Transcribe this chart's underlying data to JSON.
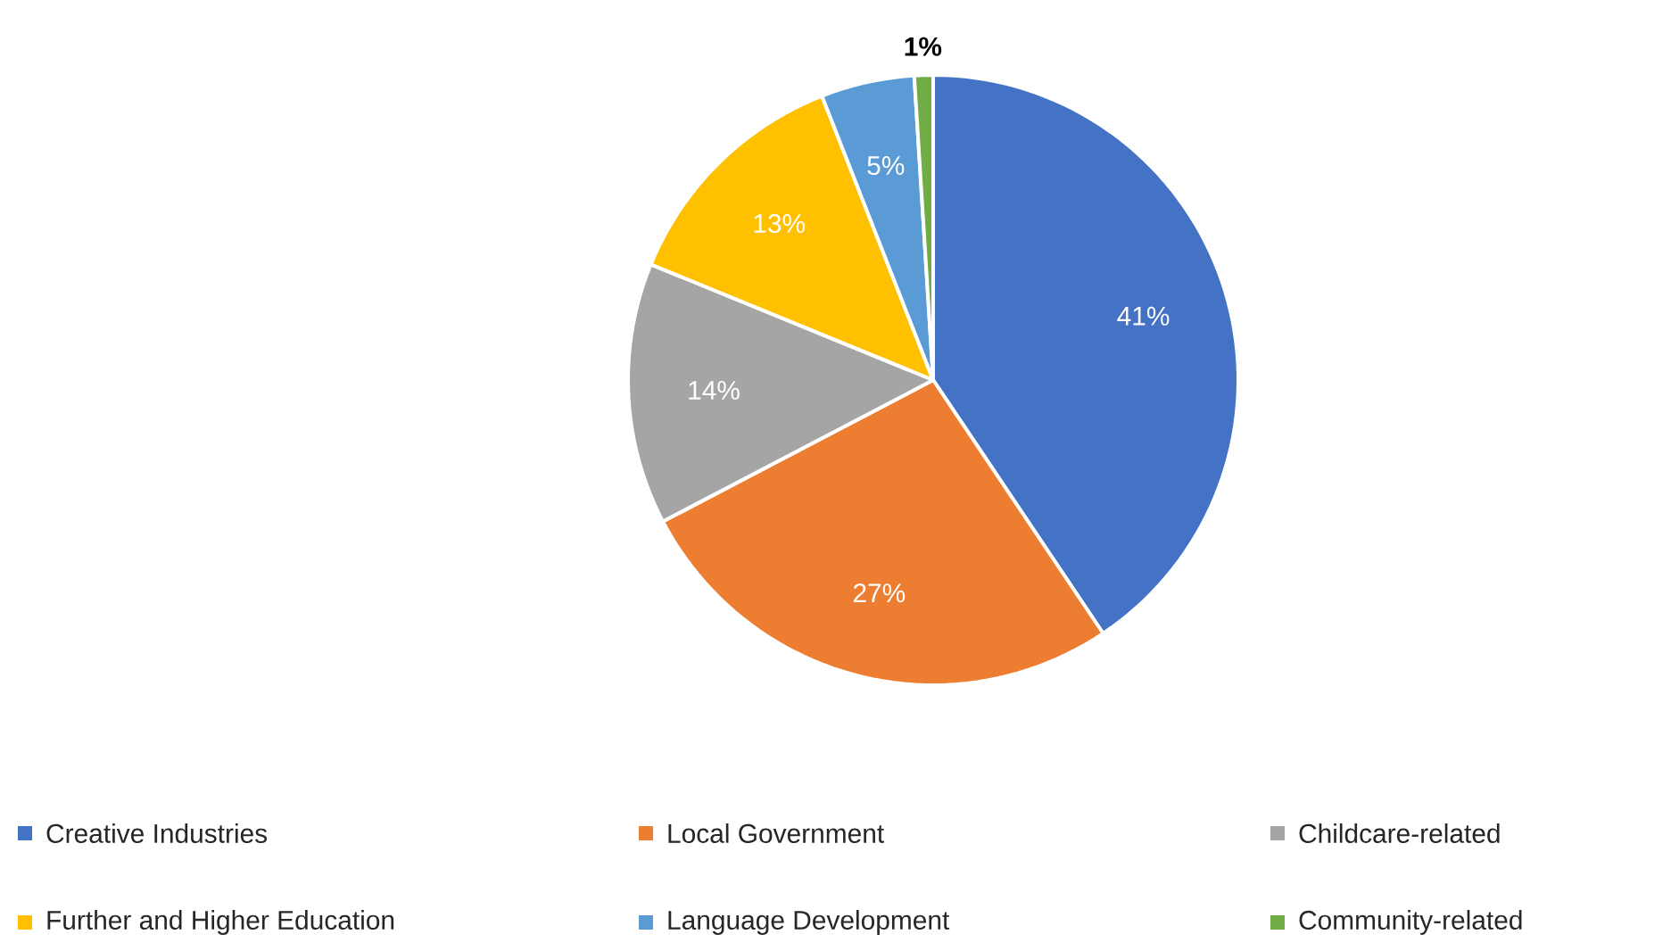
{
  "chart_data": {
    "type": "pie",
    "categories": [
      "Creative Industries",
      "Local Government",
      "Childcare-related",
      "Further and Higher Education",
      "Language Development",
      "Community-related"
    ],
    "values": [
      41,
      27,
      14,
      13,
      5,
      1
    ],
    "colors": [
      "#4472c4",
      "#ed7d31",
      "#a5a5a5",
      "#ffc000",
      "#5b9bd5",
      "#70ad47"
    ],
    "value_labels": [
      "41%",
      "27%",
      "14%",
      "13%",
      "5%",
      "1%"
    ],
    "legend": "bottom"
  }
}
